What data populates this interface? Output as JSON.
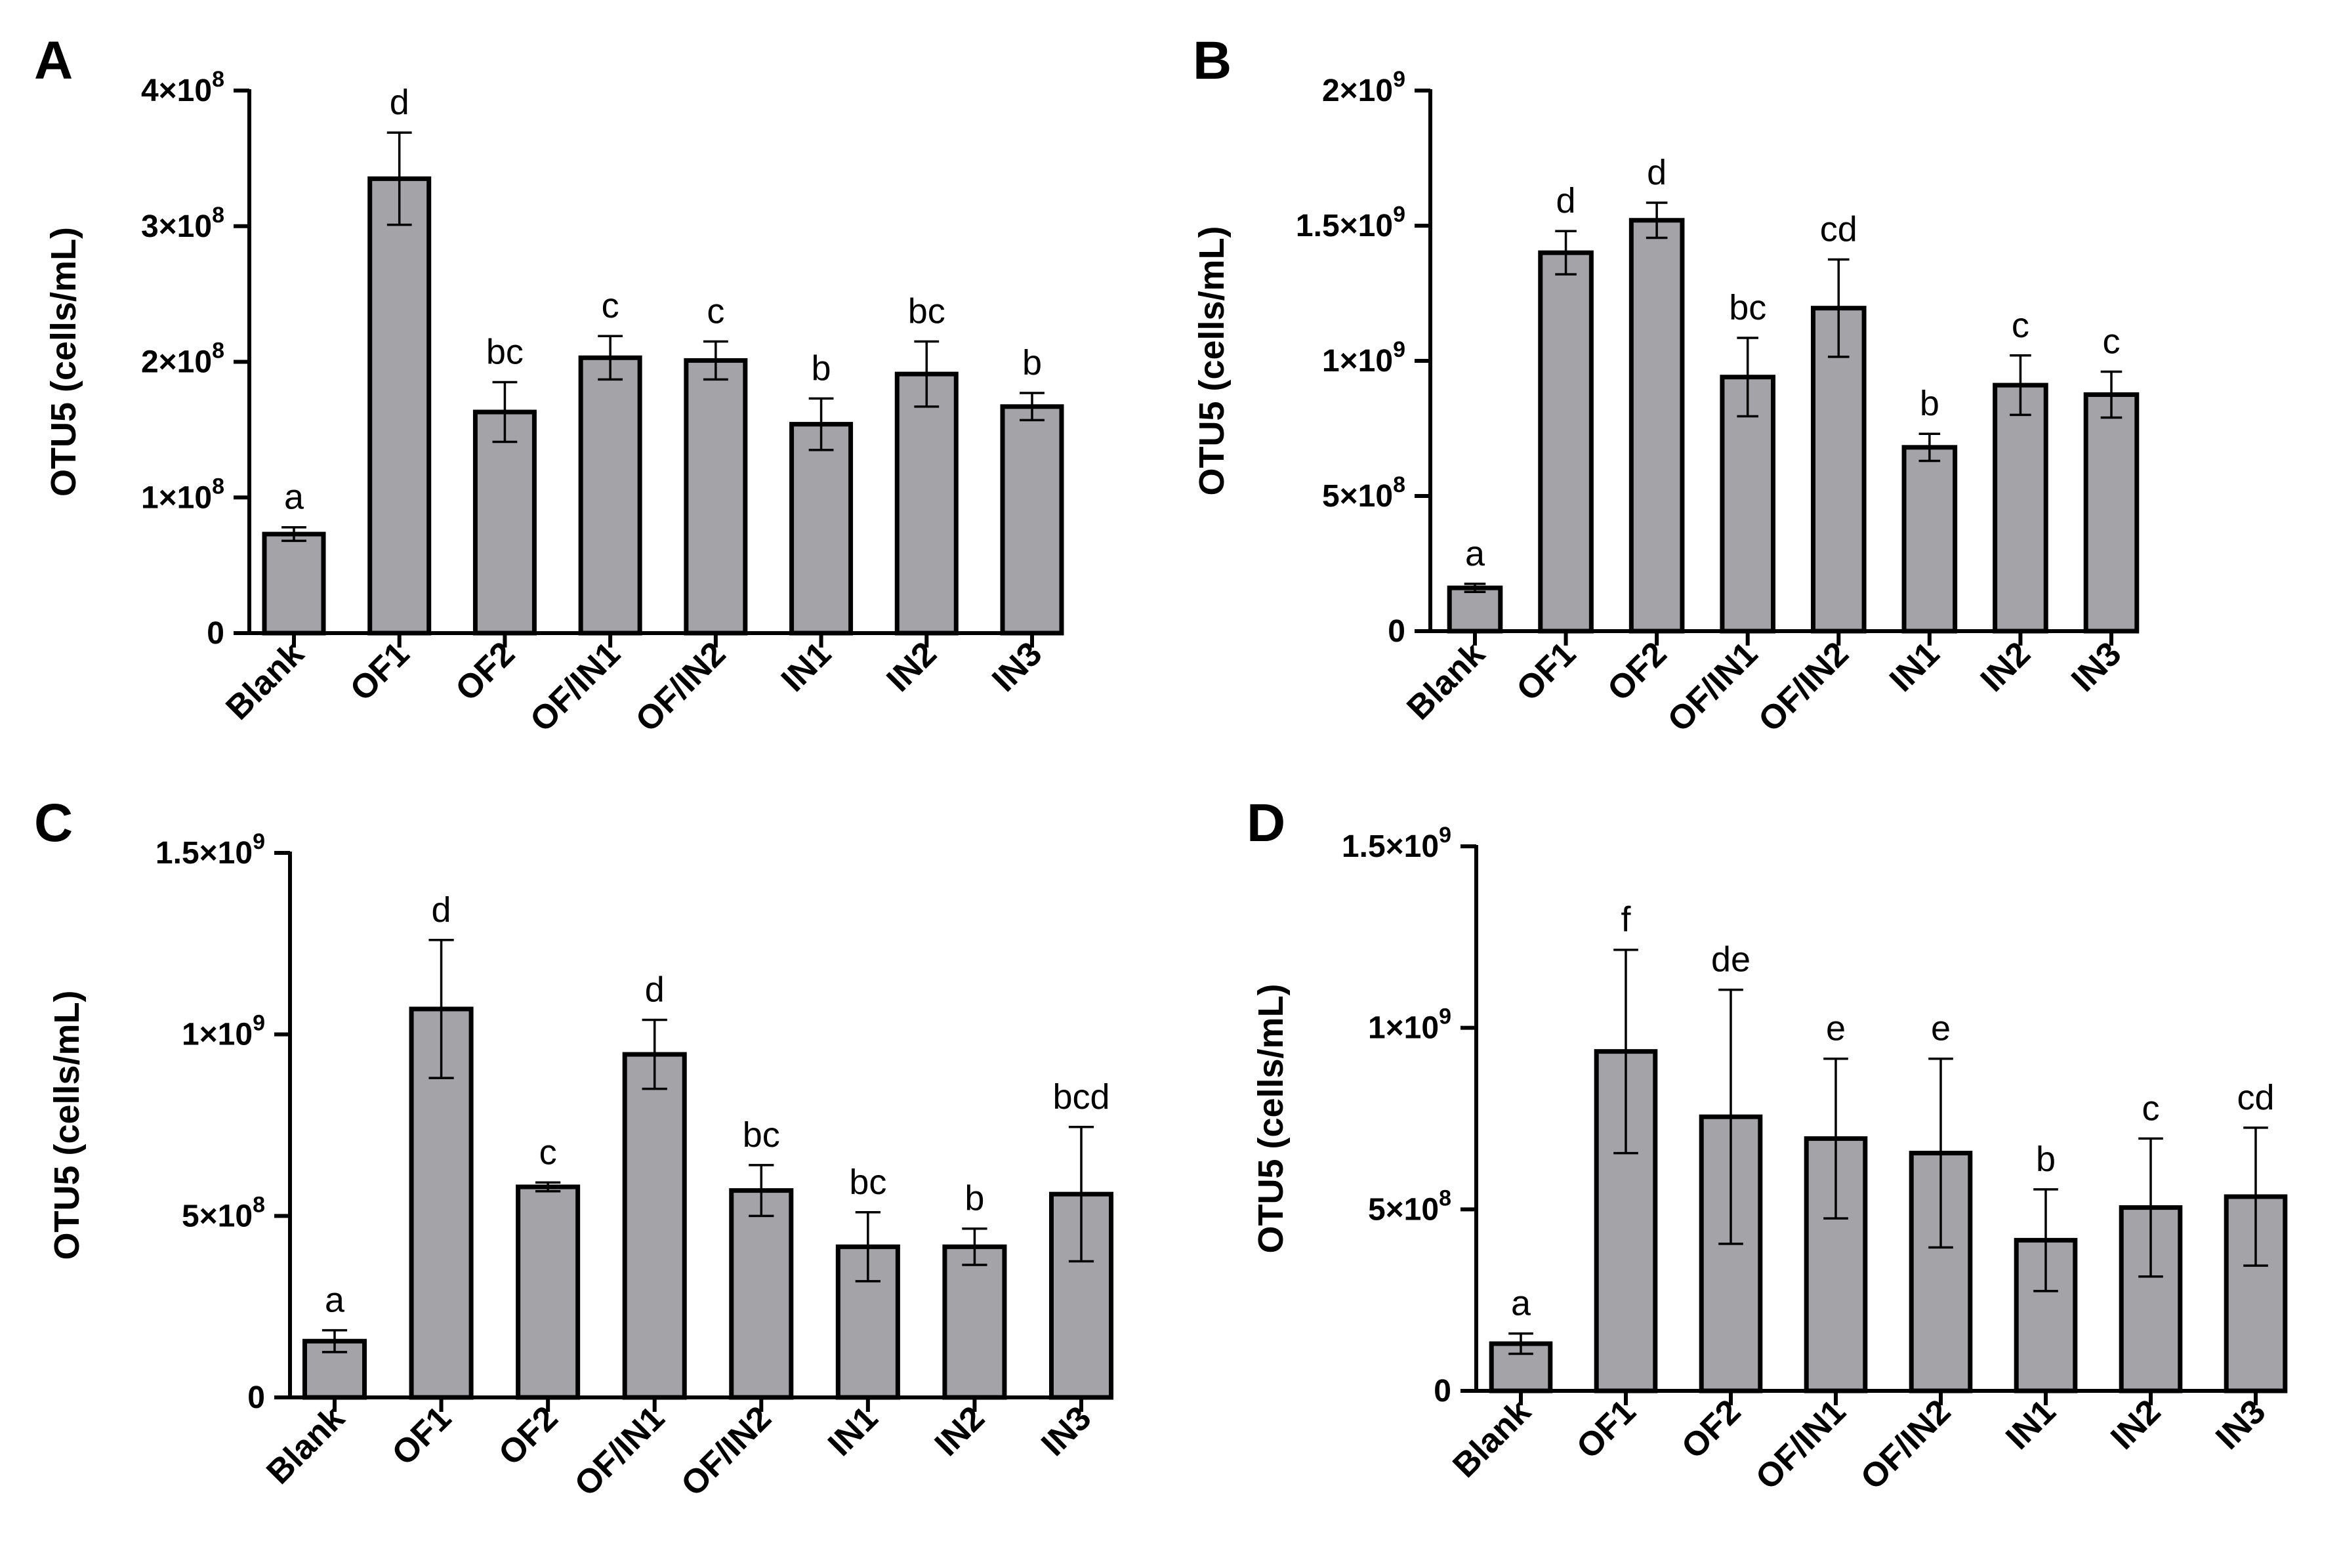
{
  "colors": {
    "bar_fill": "#a3a3a8",
    "bar_stroke": "#000000",
    "axis": "#000000"
  },
  "chart_data": [
    {
      "panel": "A",
      "type": "bar",
      "ylabel": "OTU5 (cells/mL)",
      "ylim": [
        0,
        400000000
      ],
      "yticks": [
        {
          "value": 0,
          "mant": "0",
          "exp": ""
        },
        {
          "value": 100000000,
          "mant": "1×10",
          "exp": "8"
        },
        {
          "value": 200000000,
          "mant": "2×10",
          "exp": "8"
        },
        {
          "value": 300000000,
          "mant": "3×10",
          "exp": "8"
        },
        {
          "value": 400000000,
          "mant": "4×10",
          "exp": "8"
        }
      ],
      "categories": [
        "Blank",
        "OF1",
        "OF2",
        "OF/IN1",
        "OF/IN2",
        "IN1",
        "IN2",
        "IN3"
      ],
      "values": [
        73000000,
        335000000,
        163000000,
        203000000,
        201000000,
        154000000,
        191000000,
        167000000
      ],
      "errors": [
        5000000,
        34000000,
        22000000,
        16000000,
        14000000,
        19000000,
        24000000,
        10000000
      ],
      "labels": [
        "a",
        "d",
        "bc",
        "c",
        "c",
        "b",
        "bc",
        "b"
      ]
    },
    {
      "panel": "B",
      "type": "bar",
      "ylabel": "OTU5 (cells/mL)",
      "ylim": [
        0,
        2000000000
      ],
      "yticks": [
        {
          "value": 0,
          "mant": "0",
          "exp": ""
        },
        {
          "value": 500000000,
          "mant": "5×10",
          "exp": "8"
        },
        {
          "value": 1000000000,
          "mant": "1×10",
          "exp": "9"
        },
        {
          "value": 1500000000,
          "mant": "1.5×10",
          "exp": "9"
        },
        {
          "value": 2000000000,
          "mant": "2×10",
          "exp": "9"
        }
      ],
      "categories": [
        "Blank",
        "OF1",
        "OF2",
        "OF/IN1",
        "OF/IN2",
        "IN1",
        "IN2",
        "IN3"
      ],
      "values": [
        160000000,
        1400000000,
        1520000000,
        940000000,
        1195000000,
        680000000,
        910000000,
        875000000
      ],
      "errors": [
        15000000,
        80000000,
        65000000,
        145000000,
        180000000,
        50000000,
        110000000,
        85000000
      ],
      "labels": [
        "a",
        "d",
        "d",
        "bc",
        "cd",
        "b",
        "c",
        "c"
      ]
    },
    {
      "panel": "C",
      "type": "bar",
      "ylabel": "OTU5 (cells/mL)",
      "ylim": [
        0,
        1500000000
      ],
      "yticks": [
        {
          "value": 0,
          "mant": "0",
          "exp": ""
        },
        {
          "value": 500000000,
          "mant": "5×10",
          "exp": "8"
        },
        {
          "value": 1000000000,
          "mant": "1×10",
          "exp": "9"
        },
        {
          "value": 1500000000,
          "mant": "1.5×10",
          "exp": "9"
        }
      ],
      "categories": [
        "Blank",
        "OF1",
        "OF2",
        "OF/IN1",
        "OF/IN2",
        "IN1",
        "IN2",
        "IN3"
      ],
      "values": [
        155000000,
        1070000000,
        580000000,
        945000000,
        570000000,
        415000000,
        415000000,
        560000000
      ],
      "errors": [
        30000000,
        190000000,
        12000000,
        95000000,
        70000000,
        95000000,
        50000000,
        185000000
      ],
      "labels": [
        "a",
        "d",
        "c",
        "d",
        "bc",
        "bc",
        "b",
        "bcd"
      ]
    },
    {
      "panel": "D",
      "type": "bar",
      "ylabel": "OTU5 (cells/mL)",
      "ylim": [
        0,
        1500000000
      ],
      "yticks": [
        {
          "value": 0,
          "mant": "0",
          "exp": ""
        },
        {
          "value": 500000000,
          "mant": "5×10",
          "exp": "8"
        },
        {
          "value": 1000000000,
          "mant": "1×10",
          "exp": "9"
        },
        {
          "value": 1500000000,
          "mant": "1.5×10",
          "exp": "9"
        }
      ],
      "categories": [
        "Blank",
        "OF1",
        "OF2",
        "OF/IN1",
        "OF/IN2",
        "IN1",
        "IN2",
        "IN3"
      ],
      "values": [
        130000000,
        935000000,
        755000000,
        695000000,
        655000000,
        415000000,
        505000000,
        535000000
      ],
      "errors": [
        28000000,
        280000000,
        350000000,
        220000000,
        260000000,
        140000000,
        190000000,
        190000000
      ],
      "labels": [
        "a",
        "f",
        "de",
        "e",
        "e",
        "b",
        "c",
        "cd"
      ]
    }
  ]
}
